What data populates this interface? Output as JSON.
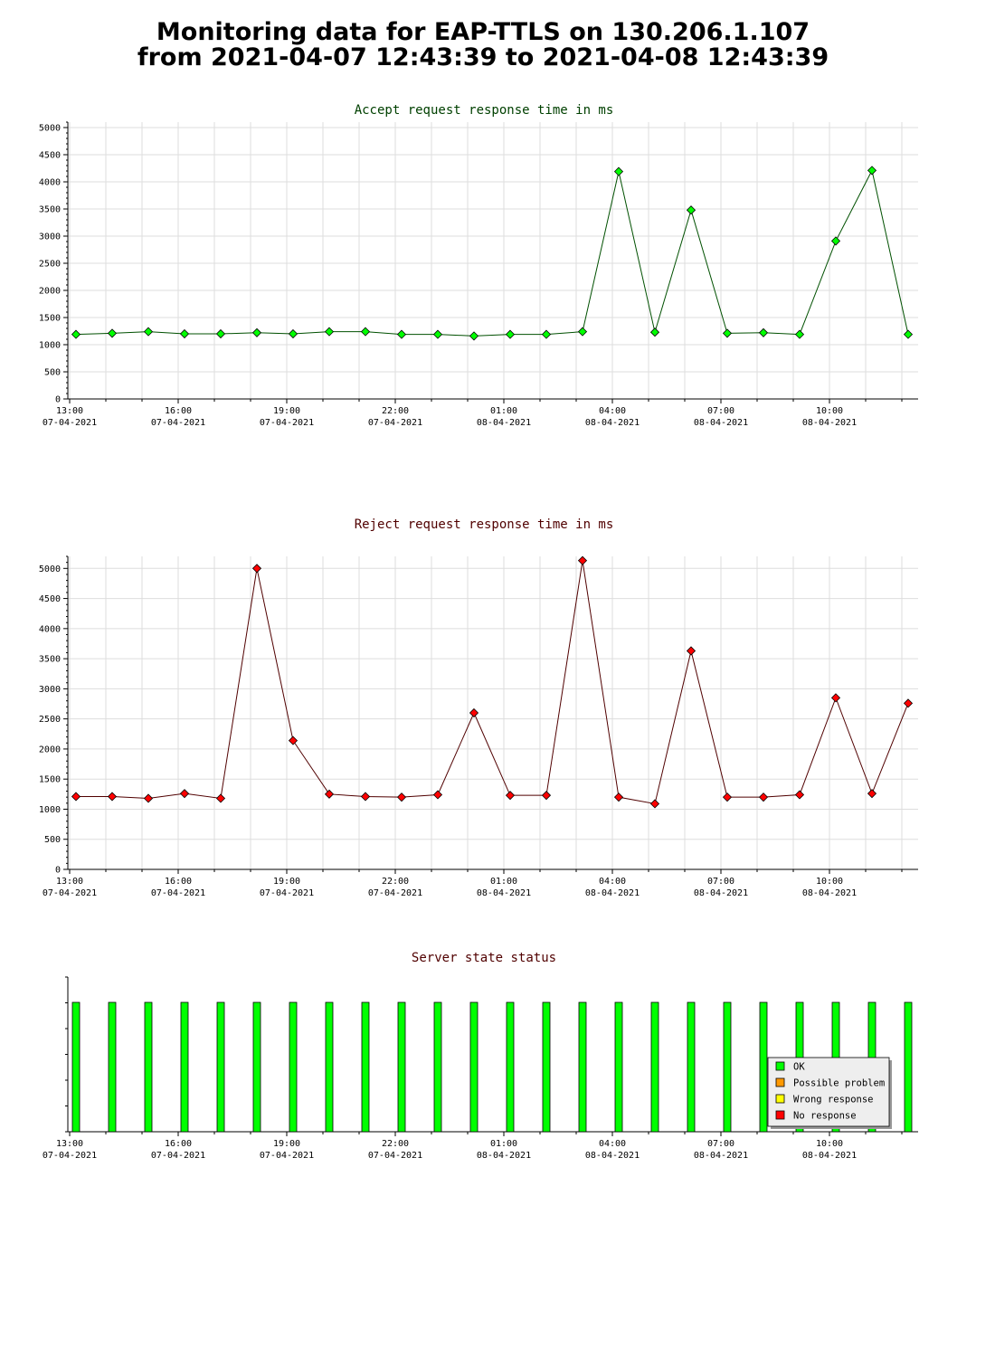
{
  "page": {
    "title_line1": "Monitoring data for EAP-TTLS on 130.206.1.107",
    "title_line2": "from 2021-04-07 12:43:39 to 2021-04-08 12:43:39"
  },
  "colors": {
    "accept_line": "#005000",
    "accept_marker": "#00ff00",
    "reject_line": "#500000",
    "reject_marker": "#ff0000",
    "accept_title": "#004000",
    "reject_title": "#500000",
    "status_title": "#500000",
    "grid": "#dddddd",
    "ok": "#00ff00",
    "possible_problem": "#ff9900",
    "wrong_response": "#ffff00",
    "no_response": "#ff0000"
  },
  "x_ticks": [
    {
      "time": "13:00",
      "date": "07-04-2021"
    },
    {
      "time": "16:00",
      "date": "07-04-2021"
    },
    {
      "time": "19:00",
      "date": "07-04-2021"
    },
    {
      "time": "22:00",
      "date": "07-04-2021"
    },
    {
      "time": "01:00",
      "date": "08-04-2021"
    },
    {
      "time": "04:00",
      "date": "08-04-2021"
    },
    {
      "time": "07:00",
      "date": "08-04-2021"
    },
    {
      "time": "10:00",
      "date": "08-04-2021"
    }
  ],
  "chart_data": [
    {
      "type": "line",
      "title": "Accept request response time in ms",
      "xlabel": "",
      "ylabel": "",
      "ylim": [
        0,
        5100
      ],
      "yticks": [
        0,
        500,
        1000,
        1500,
        2000,
        2500,
        3000,
        3500,
        4000,
        4500,
        5000
      ],
      "grid": true,
      "x": [
        "12:45",
        "13:45",
        "14:45",
        "15:45",
        "16:45",
        "17:45",
        "18:45",
        "19:45",
        "20:45",
        "21:45",
        "22:45",
        "23:45",
        "00:45",
        "01:45",
        "02:45",
        "03:45",
        "04:45",
        "05:45",
        "06:45",
        "07:45",
        "08:45",
        "09:45",
        "10:45",
        "11:45"
      ],
      "series": [
        {
          "values": [
            1190,
            1210,
            1240,
            1200,
            1200,
            1220,
            1200,
            1240,
            1240,
            1190,
            1190,
            1160,
            1190,
            1190,
            1240,
            4190,
            1230,
            3480,
            1210,
            1220,
            1190,
            2910,
            4210,
            1190
          ]
        }
      ]
    },
    {
      "type": "line",
      "title": "Reject request response time in ms",
      "xlabel": "",
      "ylabel": "",
      "ylim": [
        0,
        5200
      ],
      "yticks": [
        0,
        500,
        1000,
        1500,
        2000,
        2500,
        3000,
        3500,
        4000,
        4500,
        5000
      ],
      "grid": true,
      "x": [
        "12:45",
        "13:45",
        "14:45",
        "15:45",
        "16:45",
        "17:45",
        "18:45",
        "19:45",
        "20:45",
        "21:45",
        "22:45",
        "23:45",
        "00:45",
        "01:45",
        "02:45",
        "03:45",
        "04:45",
        "05:45",
        "06:45",
        "07:45",
        "08:45",
        "09:45",
        "10:45",
        "11:45"
      ],
      "series": [
        {
          "values": [
            1210,
            1210,
            1180,
            1260,
            1180,
            5000,
            2140,
            1250,
            1210,
            1200,
            1240,
            2600,
            1230,
            1230,
            5130,
            1200,
            1090,
            3630,
            1200,
            1200,
            1240,
            2850,
            1260,
            2760
          ]
        }
      ]
    },
    {
      "type": "bar",
      "title": "Server state status",
      "x": [
        "12:45",
        "13:45",
        "14:45",
        "15:45",
        "16:45",
        "17:45",
        "18:45",
        "19:45",
        "20:45",
        "21:45",
        "22:45",
        "23:45",
        "00:45",
        "01:45",
        "02:45",
        "03:45",
        "04:45",
        "05:45",
        "06:45",
        "07:45",
        "08:45",
        "09:45",
        "10:45",
        "11:45"
      ],
      "values": [
        "OK",
        "OK",
        "OK",
        "OK",
        "OK",
        "OK",
        "OK",
        "OK",
        "OK",
        "OK",
        "OK",
        "OK",
        "OK",
        "OK",
        "OK",
        "OK",
        "OK",
        "OK",
        "OK",
        "OK",
        "OK",
        "OK",
        "OK",
        "OK"
      ],
      "legend": [
        "OK",
        "Possible problem",
        "Wrong response",
        "No response"
      ],
      "legend_position": "bottom-right",
      "grid": false
    }
  ]
}
